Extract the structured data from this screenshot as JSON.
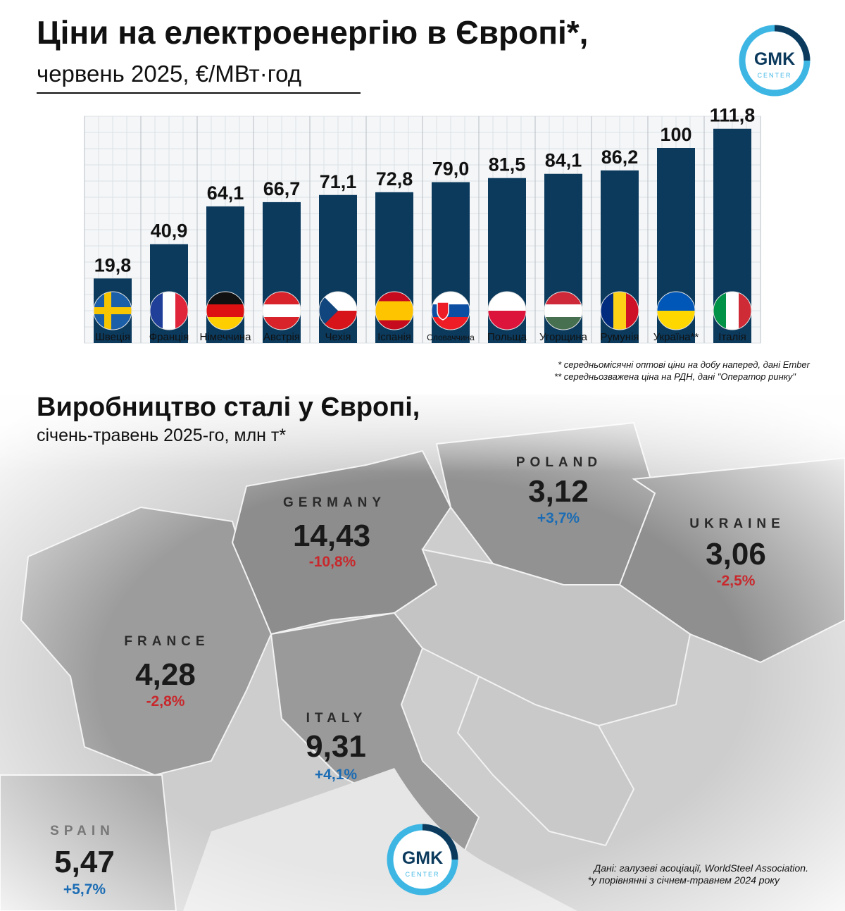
{
  "chart_data": {
    "type": "bar",
    "title": "Ціни на електроенергію в Європі*,",
    "subtitle": "червень 2025, €/МВт·год",
    "categories": [
      "Швеція",
      "Франція",
      "Німеччина",
      "Австрія",
      "Чехія",
      "Іспанія",
      "Словаччина",
      "Польща",
      "Угорщина",
      "Румунія",
      "Україна**",
      "Італія"
    ],
    "values": [
      19.8,
      40.9,
      64.1,
      66.7,
      71.1,
      72.8,
      79.0,
      81.5,
      84.1,
      86.2,
      100,
      111.8
    ],
    "value_labels": [
      "19,8",
      "40,9",
      "64,1",
      "66,7",
      "71,1",
      "72,8",
      "79,0",
      "81,5",
      "84,1",
      "86,2",
      "100",
      "111,8"
    ],
    "color": "#0b3a5d",
    "notes": [
      "* середньомісячні оптові ціни на добу наперед, дані Ember",
      "** середньозважена ціна на РДН, дані \"Оператор ринку\""
    ]
  },
  "steel": {
    "title": "Виробництво сталі у Європі,",
    "subtitle": "січень-травень 2025-го, млн т*",
    "countries": [
      {
        "name": "GERMANY",
        "value": "14,43",
        "change": "-10,8%"
      },
      {
        "name": "POLAND",
        "value": "3,12",
        "change": "+3,7%"
      },
      {
        "name": "UKRAINE",
        "value": "3,06",
        "change": "-2,5%"
      },
      {
        "name": "FRANCE",
        "value": "4,28",
        "change": "-2,8%"
      },
      {
        "name": "ITALY",
        "value": "9,31",
        "change": "+4,1%"
      },
      {
        "name": "SPAIN",
        "value": "5,47",
        "change": "+5,7%"
      }
    ],
    "source": "Дані: галузеві асоціації, WorldSteel Association.",
    "footnote": "*у порівнянні з січнем-травнем 2024 року"
  },
  "logo": {
    "name": "GMK",
    "sub": "CENTER"
  }
}
